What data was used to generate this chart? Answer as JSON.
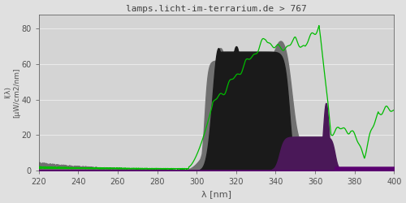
{
  "title": "lamps.licht-im-terrarium.de > 767",
  "xlabel": "λ [nm]",
  "ylabel": "I(λ)\n[μW/cm2/nm]",
  "xlim": [
    220,
    400
  ],
  "ylim": [
    0,
    88
  ],
  "yticks": [
    0,
    20,
    40,
    60,
    80
  ],
  "xticks": [
    220,
    240,
    260,
    280,
    300,
    320,
    340,
    360,
    380,
    400
  ],
  "bg_color": "#e0e0e0",
  "plot_bg_color": "#d4d4d4",
  "title_color": "#404040",
  "axis_color": "#505050",
  "grid_color": "#ebebeb",
  "spectrum_gray_color": "#707070",
  "spectrum_dark_color": "#1a1a1a",
  "spectrum_purple_color": "#4a1858",
  "spectrum_bright_purple_color": "#5a0070",
  "green_line_color": "#00bb00"
}
